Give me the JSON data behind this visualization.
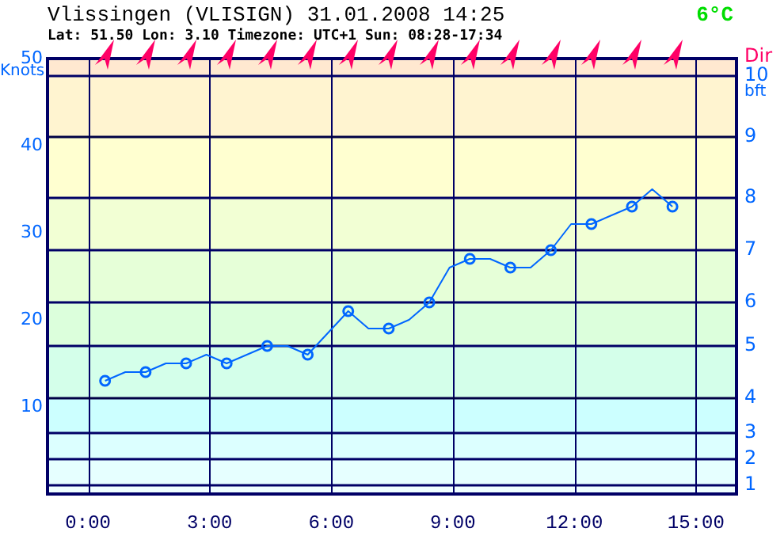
{
  "chart_data": {
    "type": "line",
    "title": "Vlissingen (VLISIGN) 31.01.2008 14:25",
    "subtitle": "Lat: 51.50 Lon: 3.10 Timezone: UTC+1 Sun: 08:28-17:34",
    "ylabel": "Knots",
    "annotations": [
      "6°C",
      "Dir",
      "bft",
      "1",
      "2",
      "3",
      "4",
      "5",
      "6",
      "7",
      "8",
      "9",
      "10"
    ],
    "xlim": [
      -1,
      16
    ],
    "xticks": [
      {
        "value": 0,
        "label": "0:00"
      },
      {
        "value": 3,
        "label": "3:00"
      },
      {
        "value": 6,
        "label": "6:00"
      },
      {
        "value": 9,
        "label": "9:00"
      },
      {
        "value": 12,
        "label": "12:00"
      },
      {
        "value": 15,
        "label": "15:00"
      }
    ],
    "ylim": [
      0,
      50
    ],
    "yticks": [
      10,
      20,
      30,
      40,
      50
    ],
    "grid": "x",
    "legend": false,
    "ref_lines": [
      {
        "axis": "y",
        "value": 1,
        "color": "#000066"
      },
      {
        "axis": "y",
        "value": 4,
        "color": "#000066"
      },
      {
        "axis": "y",
        "value": 7,
        "color": "#000066"
      },
      {
        "axis": "y",
        "value": 11,
        "color": "#000044"
      },
      {
        "axis": "y",
        "value": 17,
        "color": "#000066"
      },
      {
        "axis": "y",
        "value": 22,
        "color": "#000066"
      },
      {
        "axis": "y",
        "value": 28,
        "color": "#000066"
      },
      {
        "axis": "y",
        "value": 34,
        "color": "#000066"
      },
      {
        "axis": "y",
        "value": 41,
        "color": "#000044"
      },
      {
        "axis": "y",
        "value": 48,
        "color": "#000066"
      }
    ],
    "bands": [
      {
        "axis": "y",
        "from": 0,
        "to": 1,
        "color": "#f0ffff"
      },
      {
        "axis": "y",
        "from": 1,
        "to": 4,
        "color": "#e6ffff"
      },
      {
        "axis": "y",
        "from": 4,
        "to": 7,
        "color": "#dcffff"
      },
      {
        "axis": "y",
        "from": 7,
        "to": 11,
        "color": "#ccffff"
      },
      {
        "axis": "y",
        "from": 11,
        "to": 17,
        "color": "#d4ffea"
      },
      {
        "axis": "y",
        "from": 17,
        "to": 22,
        "color": "#dcffdc"
      },
      {
        "axis": "y",
        "from": 22,
        "to": 28,
        "color": "#e6ffd8"
      },
      {
        "axis": "y",
        "from": 28,
        "to": 34,
        "color": "#f2ffd4"
      },
      {
        "axis": "y",
        "from": 34,
        "to": 41,
        "color": "#ffffd0"
      },
      {
        "axis": "y",
        "from": 41,
        "to": 48,
        "color": "#fff4d0"
      },
      {
        "axis": "y",
        "from": 48,
        "to": 50,
        "color": "#ffe8d0"
      }
    ],
    "series": [
      {
        "type": "line",
        "color": "#0066ff",
        "marker": "none",
        "line_style": "solid",
        "x": [
          0.42,
          0.92,
          1.42,
          1.92,
          2.42,
          2.92,
          3.42,
          3.92,
          4.42,
          4.92,
          5.42,
          6.42,
          6.92,
          7.42,
          7.92,
          8.42,
          8.92,
          9.42,
          9.92,
          10.42,
          10.92,
          11.42,
          11.92,
          12.42,
          13.42,
          13.92,
          14.42
        ],
        "values": [
          13,
          14,
          14,
          15,
          15,
          16,
          15,
          16,
          17,
          17,
          16,
          21,
          19,
          19,
          20,
          22,
          26,
          27,
          27,
          26,
          26,
          28,
          31,
          31,
          33,
          35,
          33
        ]
      },
      {
        "type": "scatter",
        "color": "#0066ff",
        "marker": "circle",
        "x": [
          0.42,
          1.42,
          2.42,
          3.42,
          4.42,
          5.42,
          6.42,
          7.42,
          8.42,
          9.42,
          10.42,
          11.42,
          12.42,
          13.42,
          14.42
        ],
        "values": [
          13,
          14,
          15,
          15,
          17,
          16,
          21,
          19,
          22,
          27,
          26,
          28,
          31,
          33,
          33
        ]
      }
    ]
  }
}
